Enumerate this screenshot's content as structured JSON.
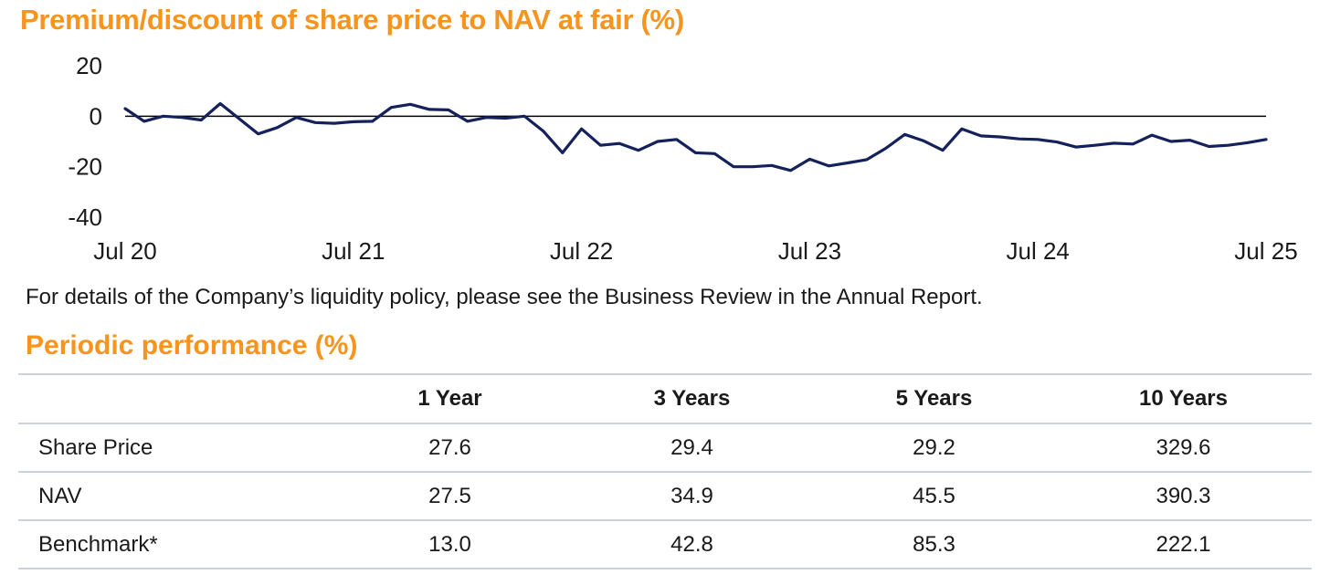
{
  "colors": {
    "accent": "#f7941d",
    "line": "#14215a",
    "rule": "#c9d3dc"
  },
  "chart_data": {
    "type": "line",
    "title": "Premium/discount of share price to NAV at fair (%)",
    "xlabel": "",
    "ylabel": "",
    "ylim": [
      -40,
      20
    ],
    "yticks": [
      20,
      0,
      -20,
      -40
    ],
    "xticks": [
      {
        "label": "Jul 20",
        "t": 0
      },
      {
        "label": "Jul 21",
        "t": 12
      },
      {
        "label": "Jul 22",
        "t": 24
      },
      {
        "label": "Jul 23",
        "t": 36
      },
      {
        "label": "Jul 24",
        "t": 48
      },
      {
        "label": "Jul 25",
        "t": 60
      }
    ],
    "reference_line": 0,
    "series": [
      {
        "name": "Premium/discount",
        "values": [
          3,
          -2,
          0,
          -0.5,
          -1.5,
          5,
          -1,
          -7,
          -4.5,
          -0.5,
          -2.5,
          -2.8,
          -2.2,
          -2,
          3.5,
          4.7,
          2.7,
          2.5,
          -2,
          -0.5,
          -0.8,
          0,
          -6,
          -14.5,
          -5,
          -11.5,
          -10.8,
          -13.5,
          -10,
          -9.2,
          -14.5,
          -14.8,
          -20,
          -20,
          -19.5,
          -21.5,
          -17,
          -19.7,
          -18.5,
          -17.2,
          -12.7,
          -7.2,
          -9.8,
          -13.5,
          -5,
          -7.8,
          -8.2,
          -9,
          -9.2,
          -10.2,
          -12.2,
          -11.5,
          -10.7,
          -11,
          -7.5,
          -10,
          -9.5,
          -12,
          -11.5,
          -10.5,
          -9.2
        ]
      }
    ]
  },
  "note": "For details of the Company’s liquidity policy, please see the Business Review in the Annual Report.",
  "performance": {
    "title": "Periodic performance (%)",
    "columns": [
      "",
      "1 Year",
      "3 Years",
      "5 Years",
      "10 Years"
    ],
    "rows": [
      {
        "label": "Share Price",
        "values": [
          "27.6",
          "29.4",
          "29.2",
          "329.6"
        ]
      },
      {
        "label": "NAV",
        "values": [
          "27.5",
          "34.9",
          "45.5",
          "390.3"
        ]
      },
      {
        "label": "Benchmark*",
        "values": [
          "13.0",
          "42.8",
          "85.3",
          "222.1"
        ]
      }
    ]
  }
}
